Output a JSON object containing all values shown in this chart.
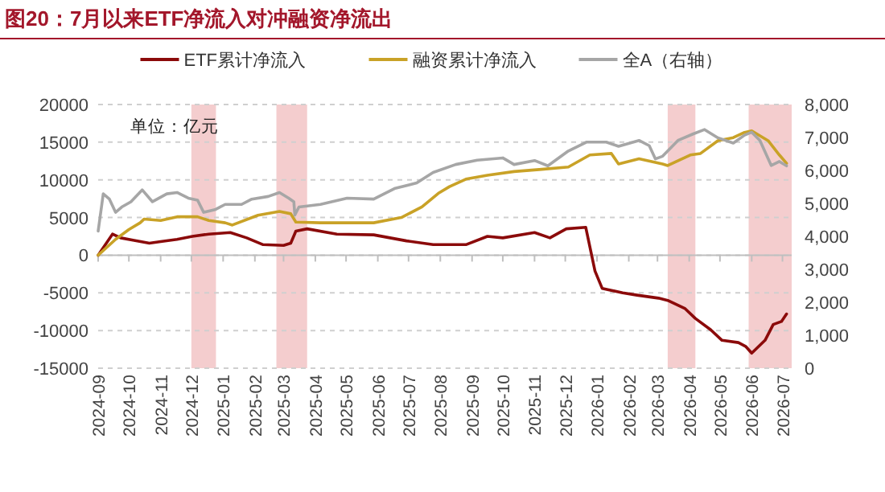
{
  "chart_data": {
    "type": "line",
    "title": "图20：7月以来ETF净流入对冲融资净流出",
    "annotations": [
      "单位：亿元"
    ],
    "xlim": [
      "2024-09-01",
      "2026-07-10"
    ],
    "xticks": [
      "2024-09",
      "2024-10",
      "2024-11",
      "2024-12",
      "2025-01",
      "2025-02",
      "2025-03",
      "2025-04",
      "2025-05",
      "2025-06",
      "2025-07",
      "2025-08",
      "2025-09",
      "2025-10",
      "2025-11",
      "2025-12",
      "2026-01",
      "2026-02",
      "2026-03",
      "2026-04",
      "2026-05",
      "2026-06",
      "2026-07"
    ],
    "ylim": [
      -15000,
      20000
    ],
    "yticks": [
      -15000,
      -10000,
      -5000,
      0,
      5000,
      10000,
      15000,
      20000
    ],
    "y2lim": [
      0,
      8000
    ],
    "y2ticks": [
      {
        "value": 0,
        "label": "0"
      },
      {
        "value": 1000,
        "label": "1,000"
      },
      {
        "value": 2000,
        "label": "2,000"
      },
      {
        "value": 3000,
        "label": "3,000"
      },
      {
        "value": 4000,
        "label": "4,000"
      },
      {
        "value": 5000,
        "label": "5,000"
      },
      {
        "value": 6000,
        "label": "6,000"
      },
      {
        "value": 7000,
        "label": "7,000"
      },
      {
        "value": 8000,
        "label": "8,000"
      }
    ],
    "grid": "y",
    "legend": "top",
    "line_style": "solid",
    "marker": "none",
    "bands": [
      {
        "axis": "x",
        "from": "2024-12-01",
        "to": "2024-12-25",
        "color": "#f2c4c6"
      },
      {
        "axis": "x",
        "from": "2025-02-22",
        "to": "2025-03-24",
        "color": "#f2c4c6"
      },
      {
        "axis": "x",
        "from": "2026-03-11",
        "to": "2026-04-07",
        "color": "#f2c4c6"
      },
      {
        "axis": "x",
        "from": "2026-05-29",
        "to": "2026-07-10",
        "color": "#f2c4c6"
      }
    ],
    "series": [
      {
        "name": "ETF累计净流入",
        "color": "#8b0a0a",
        "x": [
          "2024-09-01",
          "2024-09-15",
          "2024-09-23",
          "2024-10-05",
          "2024-10-21",
          "2024-11-01",
          "2024-11-17",
          "2024-12-02",
          "2024-12-18",
          "2025-01-08",
          "2025-01-24",
          "2025-02-09",
          "2025-03-01",
          "2025-03-08",
          "2025-03-13",
          "2025-03-24",
          "2025-04-22",
          "2025-05-28",
          "2025-06-29",
          "2025-07-25",
          "2025-08-26",
          "2025-09-16",
          "2025-10-01",
          "2025-11-01",
          "2025-11-16",
          "2025-12-02",
          "2025-12-21",
          "2025-12-30",
          "2026-01-06",
          "2026-01-26",
          "2026-02-09",
          "2026-03-02",
          "2026-03-11",
          "2026-03-28",
          "2026-04-07",
          "2026-04-22",
          "2026-05-03",
          "2026-05-19",
          "2026-05-26",
          "2026-06-01",
          "2026-06-14",
          "2026-06-22",
          "2026-06-30",
          "2026-07-05"
        ],
        "values": [
          0,
          2800,
          2300,
          2000,
          1600,
          1800,
          2100,
          2500,
          2800,
          3000,
          2300,
          1400,
          1300,
          1600,
          3200,
          3500,
          2800,
          2700,
          1900,
          1400,
          1400,
          2500,
          2300,
          3000,
          2300,
          3500,
          3700,
          -2100,
          -4400,
          -5000,
          -5300,
          -5700,
          -6000,
          -7100,
          -8400,
          -9900,
          -11300,
          -11600,
          -12100,
          -13000,
          -11300,
          -9200,
          -8800,
          -7800
        ]
      },
      {
        "name": "融资累计净流入",
        "color": "#c9a227",
        "x": [
          "2024-09-01",
          "2024-09-18",
          "2024-10-01",
          "2024-10-12",
          "2024-10-16",
          "2024-11-01",
          "2024-11-17",
          "2024-12-07",
          "2024-12-18",
          "2025-01-03",
          "2025-01-10",
          "2025-02-04",
          "2025-02-25",
          "2025-03-08",
          "2025-03-13",
          "2025-04-06",
          "2025-05-28",
          "2025-06-24",
          "2025-07-14",
          "2025-07-30",
          "2025-08-10",
          "2025-08-26",
          "2025-09-16",
          "2025-10-12",
          "2025-11-08",
          "2025-12-04",
          "2025-12-25",
          "2026-01-15",
          "2026-01-22",
          "2026-02-11",
          "2026-03-06",
          "2026-03-11",
          "2026-04-02",
          "2026-04-12",
          "2026-04-29",
          "2026-05-14",
          "2026-05-25",
          "2026-06-01",
          "2026-06-17",
          "2026-06-28",
          "2026-07-05"
        ],
        "values": [
          0,
          2100,
          3400,
          4300,
          4800,
          4600,
          5100,
          5100,
          4600,
          4300,
          4000,
          5300,
          5800,
          5500,
          4400,
          4300,
          4300,
          5000,
          6400,
          8200,
          9100,
          10100,
          10600,
          11100,
          11400,
          11700,
          13300,
          13500,
          12100,
          12800,
          12100,
          11900,
          13300,
          13500,
          15200,
          15600,
          16300,
          16500,
          15200,
          13300,
          12200
        ]
      },
      {
        "name": "全A（右轴）",
        "color": "#a6a6a6",
        "axis": "y2",
        "x": [
          "2024-09-01",
          "2024-09-06",
          "2024-09-12",
          "2024-09-18",
          "2024-09-24",
          "2024-10-03",
          "2024-10-14",
          "2024-10-24",
          "2024-11-07",
          "2024-11-17",
          "2024-11-28",
          "2024-12-07",
          "2024-12-13",
          "2024-12-24",
          "2025-01-03",
          "2025-01-19",
          "2025-01-29",
          "2025-02-14",
          "2025-02-25",
          "2025-03-06",
          "2025-03-11",
          "2025-03-12",
          "2025-03-16",
          "2025-04-06",
          "2025-05-02",
          "2025-05-28",
          "2025-06-18",
          "2025-07-09",
          "2025-07-25",
          "2025-08-16",
          "2025-09-06",
          "2025-10-01",
          "2025-10-12",
          "2025-11-01",
          "2025-11-14",
          "2025-12-04",
          "2025-12-22",
          "2026-01-10",
          "2026-01-22",
          "2026-02-11",
          "2026-02-21",
          "2026-02-27",
          "2026-03-06",
          "2026-03-21",
          "2026-04-05",
          "2026-04-16",
          "2026-04-29",
          "2026-05-14",
          "2026-05-25",
          "2026-06-01",
          "2026-06-09",
          "2026-06-20",
          "2026-06-28",
          "2026-07-05"
        ],
        "values": [
          4160,
          5290,
          5130,
          4730,
          4890,
          5050,
          5410,
          5050,
          5290,
          5330,
          5160,
          5100,
          4730,
          4810,
          4970,
          4970,
          5130,
          5210,
          5330,
          5160,
          5050,
          4650,
          4890,
          4970,
          5160,
          5130,
          5460,
          5620,
          5940,
          6180,
          6310,
          6380,
          6180,
          6300,
          6140,
          6590,
          6860,
          6860,
          6730,
          6910,
          6750,
          6350,
          6430,
          6910,
          7110,
          7240,
          6990,
          6830,
          7070,
          7160,
          6910,
          6150,
          6270,
          6140
        ]
      }
    ]
  }
}
